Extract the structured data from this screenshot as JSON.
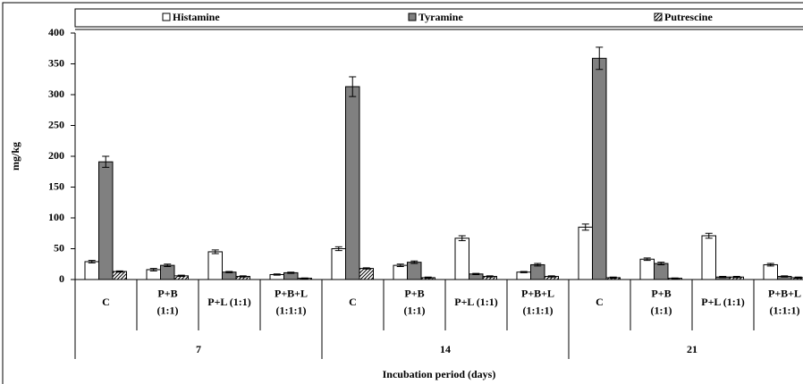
{
  "chart_data": {
    "type": "bar",
    "y_label": "mg/kg",
    "x_label": "Incubation period (days)",
    "groups": [
      {
        "name": "7",
        "categories": [
          [
            "C"
          ],
          [
            "P+B",
            "(1:1)"
          ],
          [
            "P+L (1:1)"
          ],
          [
            "P+B+L",
            "(1:1:1)"
          ]
        ]
      },
      {
        "name": "14",
        "categories": [
          [
            "C"
          ],
          [
            "P+B",
            "(1:1)"
          ],
          [
            "P+L (1:1)"
          ],
          [
            "P+B+L",
            "(1:1:1)"
          ]
        ]
      },
      {
        "name": "21",
        "categories": [
          [
            "C"
          ],
          [
            "P+B",
            "(1:1)"
          ],
          [
            "P+L (1:1)"
          ],
          [
            "P+B+L",
            "(1:1:1)"
          ]
        ]
      }
    ],
    "series": [
      {
        "name": "Histamine",
        "color": "#ffffff",
        "pattern": "solid",
        "values": [
          29,
          16,
          45,
          8,
          50,
          23,
          67,
          12,
          85,
          33,
          71,
          24
        ],
        "errors": [
          2,
          2,
          3,
          1,
          3,
          2,
          4,
          1,
          5,
          2,
          4,
          2
        ]
      },
      {
        "name": "Tyramine",
        "color": "#808080",
        "pattern": "solid",
        "values": [
          191,
          23,
          12,
          11,
          313,
          28,
          9,
          24,
          359,
          26,
          4,
          5
        ],
        "errors": [
          9,
          2,
          1,
          1,
          16,
          2,
          1,
          2,
          18,
          2,
          1,
          1
        ]
      },
      {
        "name": "Putrescine",
        "color": "#ffffff",
        "pattern": "diagonal",
        "values": [
          13,
          6,
          5,
          2,
          18,
          3,
          5,
          5,
          3,
          2,
          4,
          3
        ],
        "errors": [
          1,
          1,
          1,
          0.5,
          1,
          1,
          1,
          1,
          1,
          0.5,
          1,
          1
        ]
      }
    ],
    "ylim": [
      0,
      400
    ],
    "yticks": [
      0,
      50,
      100,
      150,
      200,
      250,
      300,
      350,
      400
    ],
    "legend": "top"
  }
}
